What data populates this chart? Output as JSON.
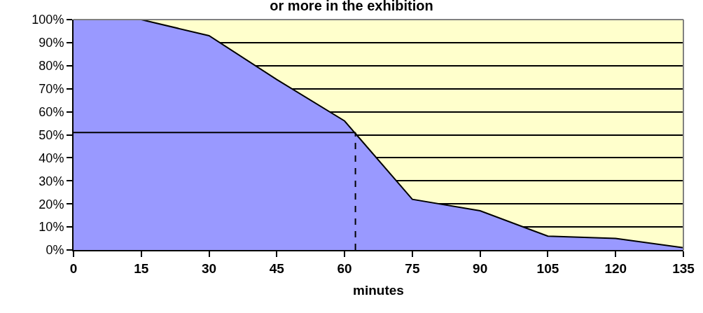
{
  "chart_data": {
    "type": "area",
    "title": "or more in the exhibition",
    "xlabel": "minutes",
    "x": [
      0,
      15,
      30,
      45,
      60,
      75,
      90,
      105,
      120,
      135
    ],
    "series": [
      {
        "color": "#9999ff",
        "values": [
          100,
          100,
          93,
          74,
          56,
          22,
          17,
          6,
          5,
          1
        ]
      }
    ],
    "ref_lines": [
      {
        "axis": "y",
        "value": 51,
        "color": "#000000",
        "line_style": "solid"
      },
      {
        "axis": "x",
        "value": 62.4,
        "color": "#000000",
        "line_style": "dashed"
      }
    ],
    "xlim": [
      0,
      135
    ],
    "xticks": [
      0,
      15,
      30,
      45,
      60,
      75,
      90,
      105,
      120,
      135
    ],
    "ylim": [
      0,
      100
    ],
    "yticks": [
      {
        "value": 0,
        "label": "0%"
      },
      {
        "value": 10,
        "label": "10%"
      },
      {
        "value": 20,
        "label": "20%"
      },
      {
        "value": 30,
        "label": "30%"
      },
      {
        "value": 40,
        "label": "40%"
      },
      {
        "value": 50,
        "label": "50%"
      },
      {
        "value": 60,
        "label": "60%"
      },
      {
        "value": 70,
        "label": "70%"
      },
      {
        "value": 80,
        "label": "80%"
      },
      {
        "value": 90,
        "label": "90%"
      },
      {
        "value": 100,
        "label": "100%"
      }
    ],
    "grid": "y"
  }
}
